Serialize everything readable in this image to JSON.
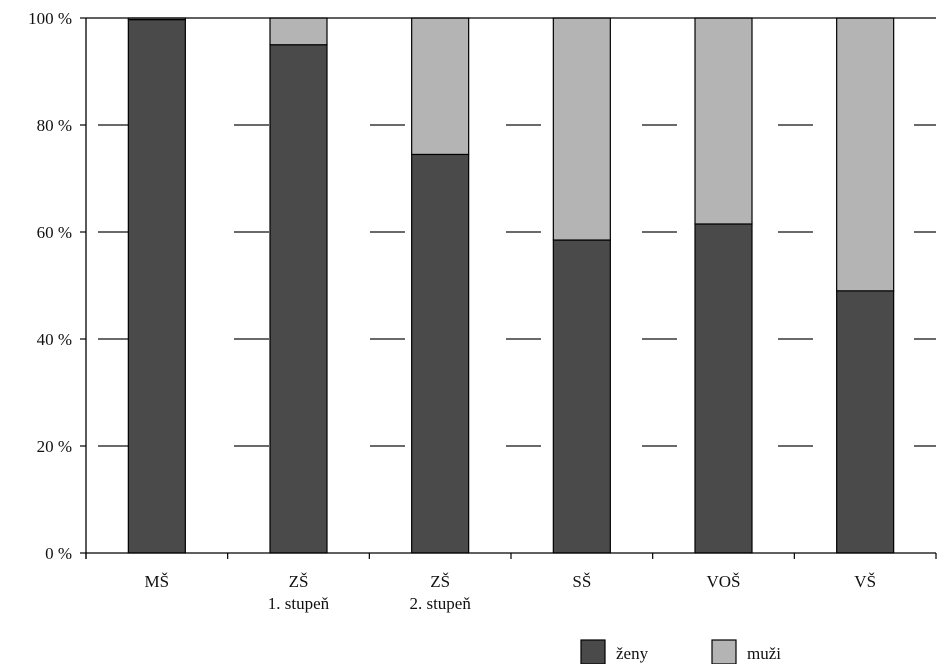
{
  "chart_data": {
    "type": "bar",
    "stacked": true,
    "percent": true,
    "categories": [
      [
        "MŠ"
      ],
      [
        "ZŠ",
        "1. stupeň"
      ],
      [
        "ZŠ",
        "2. stupeň"
      ],
      [
        "SŠ"
      ],
      [
        "VOŠ"
      ],
      [
        "VŠ"
      ]
    ],
    "series": [
      {
        "name": "ženy",
        "color": "#4a4a4a",
        "values": [
          99.7,
          95,
          74.5,
          58.5,
          61.5,
          49
        ]
      },
      {
        "name": "muži",
        "color": "#b4b4b4",
        "values": [
          0.3,
          5,
          25.5,
          41.5,
          38.5,
          51
        ]
      }
    ],
    "yticks": [
      "0 %",
      "20 %",
      "40 %",
      "60 %",
      "80 %",
      "100 %"
    ],
    "ylim": [
      0,
      100
    ],
    "grid": "dashed horizontal",
    "legend_position": "bottom-right",
    "title": "",
    "xlabel": "",
    "ylabel": ""
  }
}
